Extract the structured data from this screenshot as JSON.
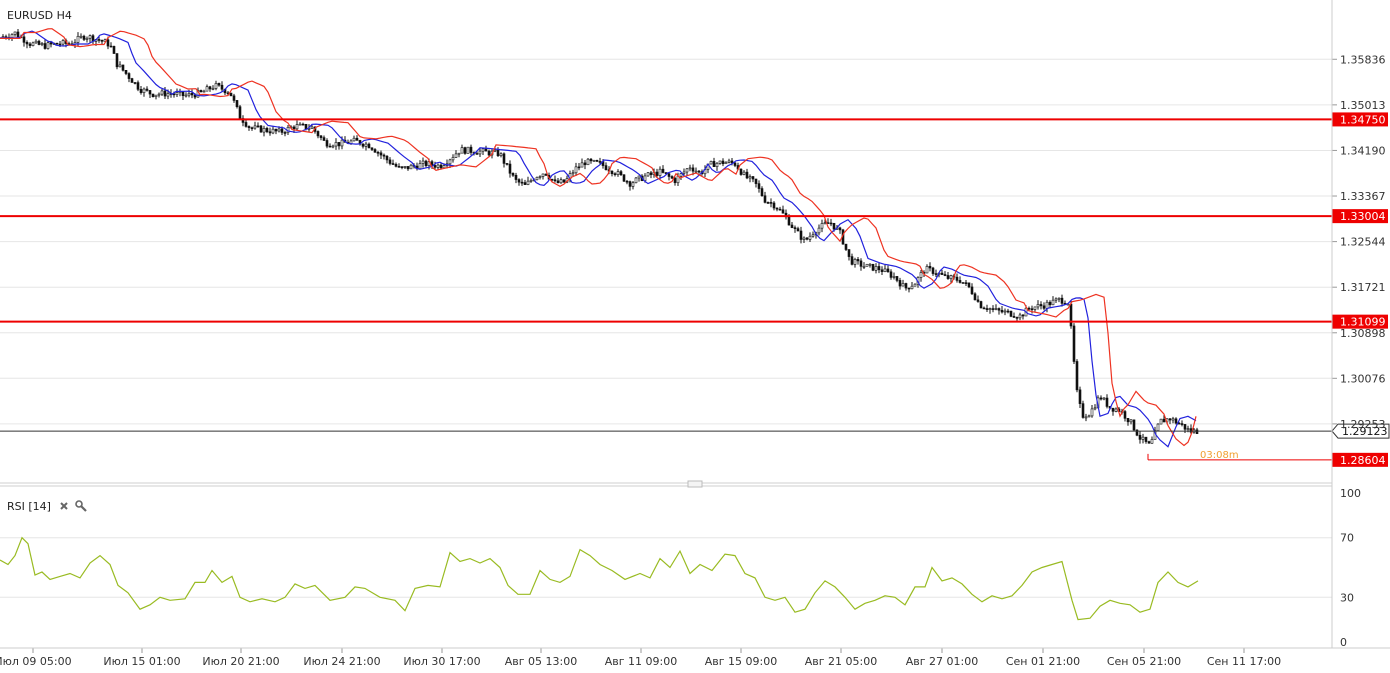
{
  "header": {
    "symbol_label": "EURUSD H4"
  },
  "rsi_panel": {
    "label": "RSI [14]",
    "close_icon": "close-icon",
    "settings_icon": "wrench-icon"
  },
  "colors": {
    "candle_up": "#ffffff",
    "candle_down": "#111111",
    "ma_fast": "#2222dd",
    "ma_slow": "#ee3322",
    "level_line": "#ee0000",
    "price_line": "#333333",
    "rsi_line": "#99bb22",
    "grid": "#e6e6e6",
    "timer": "#f0a030"
  },
  "chart_data": [
    {
      "type": "candlestick",
      "title": "EURUSD H4",
      "ylim": [
        1.2824,
        1.3687
      ],
      "y_ticks": [
        "1.35836",
        "1.35013",
        "1.34190",
        "1.33367",
        "1.32544",
        "1.31721",
        "1.30898",
        "1.30076",
        "1.29253"
      ],
      "x_ticks": [
        "Июл 09 05:00",
        "Июл 15 01:00",
        "Июл 20 21:00",
        "Июл 24 21:00",
        "Июл 30 17:00",
        "Авг 05 13:00",
        "Авг 11 09:00",
        "Авг 15 09:00",
        "Авг 21 05:00",
        "Авг 27 01:00",
        "Сен 01 21:00",
        "Сен 05 21:00",
        "Сен 11 17:00"
      ],
      "horizontal_levels": [
        {
          "label": "1.34750",
          "value": 1.3475
        },
        {
          "label": "1.33004",
          "value": 1.33004
        },
        {
          "label": "1.31099",
          "value": 1.31099
        },
        {
          "label": "1.28604",
          "value": 1.28604
        }
      ],
      "current_price": {
        "label": "1.29123",
        "value": 1.29123
      },
      "timer": "03:08m",
      "price_path": [
        [
          0,
          1.3623
        ],
        [
          15,
          1.3631
        ],
        [
          30,
          1.3612
        ],
        [
          45,
          1.3608
        ],
        [
          58,
          1.3612
        ],
        [
          70,
          1.3612
        ],
        [
          85,
          1.3626
        ],
        [
          100,
          1.3618
        ],
        [
          110,
          1.361
        ],
        [
          117,
          1.3575
        ],
        [
          125,
          1.356
        ],
        [
          140,
          1.353
        ],
        [
          152,
          1.3521
        ],
        [
          170,
          1.3522
        ],
        [
          185,
          1.3518
        ],
        [
          200,
          1.3522
        ],
        [
          215,
          1.3536
        ],
        [
          230,
          1.3524
        ],
        [
          240,
          1.348
        ],
        [
          250,
          1.346
        ],
        [
          265,
          1.3456
        ],
        [
          280,
          1.3452
        ],
        [
          295,
          1.3463
        ],
        [
          312,
          1.346
        ],
        [
          325,
          1.3433
        ],
        [
          340,
          1.3431
        ],
        [
          355,
          1.3436
        ],
        [
          370,
          1.3428
        ],
        [
          385,
          1.3405
        ],
        [
          400,
          1.3385
        ],
        [
          412,
          1.339
        ],
        [
          425,
          1.3395
        ],
        [
          440,
          1.3391
        ],
        [
          450,
          1.3405
        ],
        [
          460,
          1.342
        ],
        [
          475,
          1.3418
        ],
        [
          490,
          1.3415
        ],
        [
          500,
          1.3413
        ],
        [
          505,
          1.3395
        ],
        [
          515,
          1.3365
        ],
        [
          525,
          1.3355
        ],
        [
          535,
          1.3372
        ],
        [
          545,
          1.338
        ],
        [
          555,
          1.336
        ],
        [
          565,
          1.3362
        ],
        [
          575,
          1.3385
        ],
        [
          585,
          1.3398
        ],
        [
          600,
          1.3395
        ],
        [
          615,
          1.338
        ],
        [
          630,
          1.336
        ],
        [
          645,
          1.3372
        ],
        [
          660,
          1.338
        ],
        [
          675,
          1.3365
        ],
        [
          690,
          1.339
        ],
        [
          700,
          1.3378
        ],
        [
          712,
          1.3395
        ],
        [
          725,
          1.3398
        ],
        [
          735,
          1.3395
        ],
        [
          745,
          1.3372
        ],
        [
          755,
          1.336
        ],
        [
          765,
          1.333
        ],
        [
          775,
          1.332
        ],
        [
          785,
          1.33
        ],
        [
          795,
          1.3275
        ],
        [
          805,
          1.3255
        ],
        [
          815,
          1.3275
        ],
        [
          830,
          1.329
        ],
        [
          840,
          1.327
        ],
        [
          850,
          1.322
        ],
        [
          865,
          1.321
        ],
        [
          880,
          1.3205
        ],
        [
          895,
          1.319
        ],
        [
          905,
          1.317
        ],
        [
          915,
          1.318
        ],
        [
          925,
          1.3205
        ],
        [
          935,
          1.32
        ],
        [
          945,
          1.319
        ],
        [
          960,
          1.3185
        ],
        [
          970,
          1.317
        ],
        [
          980,
          1.314
        ],
        [
          995,
          1.313
        ],
        [
          1010,
          1.3125
        ],
        [
          1020,
          1.312
        ],
        [
          1030,
          1.3135
        ],
        [
          1045,
          1.314
        ],
        [
          1060,
          1.315
        ],
        [
          1068,
          1.3145
        ],
        [
          1072,
          1.308
        ],
        [
          1076,
          1.299
        ],
        [
          1082,
          1.294
        ],
        [
          1090,
          1.2945
        ],
        [
          1100,
          1.2975
        ],
        [
          1110,
          1.2955
        ],
        [
          1120,
          1.295
        ],
        [
          1130,
          1.293
        ],
        [
          1140,
          1.29
        ],
        [
          1150,
          1.2885
        ],
        [
          1160,
          1.293
        ],
        [
          1170,
          1.2935
        ],
        [
          1180,
          1.2925
        ],
        [
          1190,
          1.2912
        ],
        [
          1198,
          1.29123
        ]
      ],
      "series": [
        {
          "name": "",
          "type": "ma-fast",
          "lag": 2,
          "offset": 0.0008
        },
        {
          "name": "",
          "type": "ma-slow",
          "lag": 4,
          "offset": 0.0018
        }
      ]
    },
    {
      "type": "line",
      "title": "RSI [14]",
      "ylim": [
        0,
        100
      ],
      "y_ticks": [
        "100",
        "70",
        "30",
        "0"
      ],
      "levels": [
        70,
        30
      ],
      "rsi_path": [
        [
          0,
          55
        ],
        [
          8,
          52
        ],
        [
          15,
          58
        ],
        [
          22,
          70
        ],
        [
          28,
          66
        ],
        [
          35,
          45
        ],
        [
          42,
          47
        ],
        [
          50,
          42
        ],
        [
          60,
          44
        ],
        [
          70,
          46
        ],
        [
          80,
          43
        ],
        [
          90,
          53
        ],
        [
          100,
          58
        ],
        [
          110,
          52
        ],
        [
          118,
          38
        ],
        [
          128,
          33
        ],
        [
          140,
          22
        ],
        [
          150,
          25
        ],
        [
          160,
          30
        ],
        [
          170,
          28
        ],
        [
          185,
          29
        ],
        [
          195,
          40
        ],
        [
          205,
          40
        ],
        [
          212,
          48
        ],
        [
          222,
          40
        ],
        [
          232,
          44
        ],
        [
          240,
          30
        ],
        [
          250,
          27
        ],
        [
          262,
          29
        ],
        [
          275,
          27
        ],
        [
          285,
          30
        ],
        [
          295,
          39
        ],
        [
          305,
          36
        ],
        [
          315,
          38
        ],
        [
          330,
          28
        ],
        [
          345,
          30
        ],
        [
          355,
          37
        ],
        [
          365,
          36
        ],
        [
          380,
          30
        ],
        [
          395,
          28
        ],
        [
          405,
          21
        ],
        [
          415,
          36
        ],
        [
          428,
          38
        ],
        [
          440,
          37
        ],
        [
          450,
          60
        ],
        [
          460,
          54
        ],
        [
          470,
          56
        ],
        [
          480,
          53
        ],
        [
          490,
          56
        ],
        [
          500,
          50
        ],
        [
          508,
          38
        ],
        [
          518,
          32
        ],
        [
          530,
          32
        ],
        [
          540,
          48
        ],
        [
          550,
          42
        ],
        [
          560,
          40
        ],
        [
          570,
          44
        ],
        [
          580,
          62
        ],
        [
          590,
          58
        ],
        [
          600,
          52
        ],
        [
          612,
          48
        ],
        [
          625,
          42
        ],
        [
          640,
          46
        ],
        [
          650,
          43
        ],
        [
          660,
          56
        ],
        [
          670,
          50
        ],
        [
          680,
          61
        ],
        [
          690,
          46
        ],
        [
          700,
          52
        ],
        [
          712,
          48
        ],
        [
          725,
          59
        ],
        [
          735,
          58
        ],
        [
          745,
          46
        ],
        [
          755,
          43
        ],
        [
          765,
          30
        ],
        [
          775,
          28
        ],
        [
          785,
          30
        ],
        [
          795,
          20
        ],
        [
          805,
          22
        ],
        [
          815,
          33
        ],
        [
          825,
          41
        ],
        [
          835,
          37
        ],
        [
          845,
          30
        ],
        [
          855,
          22
        ],
        [
          865,
          26
        ],
        [
          875,
          28
        ],
        [
          885,
          31
        ],
        [
          895,
          30
        ],
        [
          905,
          25
        ],
        [
          915,
          37
        ],
        [
          925,
          37
        ],
        [
          932,
          50
        ],
        [
          942,
          41
        ],
        [
          952,
          43
        ],
        [
          962,
          39
        ],
        [
          972,
          32
        ],
        [
          982,
          27
        ],
        [
          992,
          31
        ],
        [
          1002,
          29
        ],
        [
          1012,
          31
        ],
        [
          1022,
          38
        ],
        [
          1032,
          47
        ],
        [
          1042,
          50
        ],
        [
          1052,
          52
        ],
        [
          1062,
          54
        ],
        [
          1072,
          28
        ],
        [
          1078,
          15
        ],
        [
          1090,
          16
        ],
        [
          1100,
          24
        ],
        [
          1110,
          28
        ],
        [
          1120,
          26
        ],
        [
          1130,
          25
        ],
        [
          1140,
          20
        ],
        [
          1150,
          22
        ],
        [
          1158,
          40
        ],
        [
          1168,
          47
        ],
        [
          1178,
          40
        ],
        [
          1188,
          37
        ],
        [
          1198,
          41
        ]
      ]
    }
  ]
}
